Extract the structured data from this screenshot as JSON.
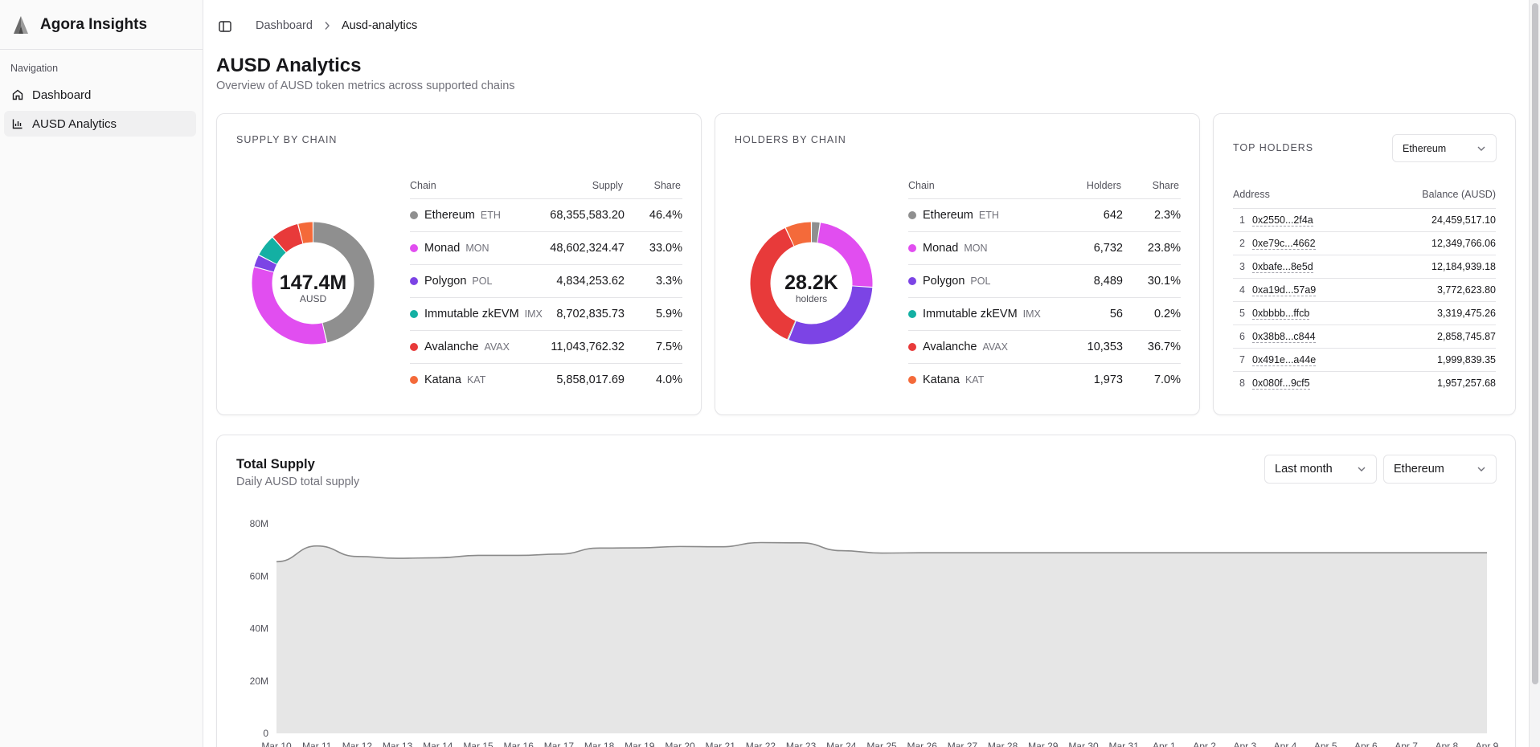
{
  "app": {
    "name": "Agora Insights"
  },
  "sidebar": {
    "heading": "Navigation",
    "items": [
      {
        "label": "Dashboard",
        "icon": "home-icon"
      },
      {
        "label": "AUSD Analytics",
        "icon": "bar-chart-icon"
      }
    ]
  },
  "breadcrumb": {
    "root": "Dashboard",
    "current": "Ausd-analytics"
  },
  "page": {
    "title": "AUSD Analytics",
    "subtitle": "Overview of AUSD token metrics across supported chains"
  },
  "supply": {
    "label": "SUPPLY BY CHAIN",
    "columns": [
      "Chain",
      "Supply",
      "Share"
    ],
    "center_value": "147.4M",
    "center_unit": "AUSD",
    "rows": [
      {
        "chain": "Ethereum",
        "ticker": "ETH",
        "value": "68,355,583.20",
        "share": "46.4%",
        "pct": 46.4,
        "color": "#8f8f8f"
      },
      {
        "chain": "Monad",
        "ticker": "MON",
        "value": "48,602,324.47",
        "share": "33.0%",
        "pct": 33.0,
        "color": "#e14ef0"
      },
      {
        "chain": "Polygon",
        "ticker": "POL",
        "value": "4,834,253.62",
        "share": "3.3%",
        "pct": 3.3,
        "color": "#7c44e5"
      },
      {
        "chain": "Immutable zkEVM",
        "ticker": "IMX",
        "value": "8,702,835.73",
        "share": "5.9%",
        "pct": 5.9,
        "color": "#14b0a3"
      },
      {
        "chain": "Avalanche",
        "ticker": "AVAX",
        "value": "11,043,762.32",
        "share": "7.5%",
        "pct": 7.5,
        "color": "#e83a3a"
      },
      {
        "chain": "Katana",
        "ticker": "KAT",
        "value": "5,858,017.69",
        "share": "4.0%",
        "pct": 4.0,
        "color": "#f46a3a"
      }
    ]
  },
  "holders": {
    "label": "HOLDERS BY CHAIN",
    "columns": [
      "Chain",
      "Holders",
      "Share"
    ],
    "center_value": "28.2K",
    "center_unit": "holders",
    "rows": [
      {
        "chain": "Ethereum",
        "ticker": "ETH",
        "value": "642",
        "share": "2.3%",
        "pct": 2.3,
        "color": "#8f8f8f"
      },
      {
        "chain": "Monad",
        "ticker": "MON",
        "value": "6,732",
        "share": "23.8%",
        "pct": 23.8,
        "color": "#e14ef0"
      },
      {
        "chain": "Polygon",
        "ticker": "POL",
        "value": "8,489",
        "share": "30.1%",
        "pct": 30.1,
        "color": "#7c44e5"
      },
      {
        "chain": "Immutable zkEVM",
        "ticker": "IMX",
        "value": "56",
        "share": "0.2%",
        "pct": 0.2,
        "color": "#14b0a3"
      },
      {
        "chain": "Avalanche",
        "ticker": "AVAX",
        "value": "10,353",
        "share": "36.7%",
        "pct": 36.7,
        "color": "#e83a3a"
      },
      {
        "chain": "Katana",
        "ticker": "KAT",
        "value": "1,973",
        "share": "7.0%",
        "pct": 7.0,
        "color": "#f46a3a"
      }
    ]
  },
  "top_holders": {
    "label": "TOP HOLDERS",
    "chain_select": "Ethereum",
    "col_address": "Address",
    "col_balance": "Balance (AUSD)",
    "rows": [
      {
        "rank": "1",
        "address": "0x2550...2f4a",
        "balance": "24,459,517.10"
      },
      {
        "rank": "2",
        "address": "0xe79c...4662",
        "balance": "12,349,766.06"
      },
      {
        "rank": "3",
        "address": "0xbafe...8e5d",
        "balance": "12,184,939.18"
      },
      {
        "rank": "4",
        "address": "0xa19d...57a9",
        "balance": "3,772,623.80"
      },
      {
        "rank": "5",
        "address": "0xbbbb...ffcb",
        "balance": "3,319,475.26"
      },
      {
        "rank": "6",
        "address": "0x38b8...c844",
        "balance": "2,858,745.87"
      },
      {
        "rank": "7",
        "address": "0x491e...a44e",
        "balance": "1,999,839.35"
      },
      {
        "rank": "8",
        "address": "0x080f...9cf5",
        "balance": "1,957,257.68"
      }
    ]
  },
  "total_supply": {
    "title": "Total Supply",
    "subtitle": "Daily AUSD total supply",
    "range_select": "Last month",
    "chain_select": "Ethereum"
  },
  "chart_data": {
    "type": "area",
    "title": "Total Supply",
    "xlabel": "",
    "ylabel": "",
    "ylim": [
      0,
      80000000
    ],
    "y_ticks": [
      "80M",
      "60M",
      "40M",
      "20M",
      "0"
    ],
    "grid": true,
    "x": [
      "Mar 10",
      "Mar 11",
      "Mar 12",
      "Mar 13",
      "Mar 14",
      "Mar 15",
      "Mar 16",
      "Mar 17",
      "Mar 18",
      "Mar 19",
      "Mar 20",
      "Mar 21",
      "Mar 22",
      "Mar 23",
      "Mar 24",
      "Mar 25",
      "Mar 26",
      "Mar 27",
      "Mar 28",
      "Mar 29",
      "Mar 30",
      "Mar 31",
      "Apr 1",
      "Apr 2",
      "Apr 3",
      "Apr 4",
      "Apr 5",
      "Apr 6",
      "Apr 7",
      "Apr 8",
      "Apr 9"
    ],
    "series": [
      {
        "values": [
          65500000,
          71500000,
          67500000,
          66800000,
          67000000,
          67900000,
          67900000,
          68400000,
          70700000,
          70800000,
          71300000,
          71200000,
          72800000,
          72700000,
          69700000,
          68800000,
          68900000,
          68900000,
          68900000,
          68900000,
          68900000,
          68900000,
          68900000,
          68900000,
          68900000,
          68900000,
          68900000,
          68900000,
          68900000,
          68900000,
          68900000
        ]
      }
    ],
    "colors": {
      "line": "#8a8a8a",
      "fill": "#e6e6e6"
    }
  }
}
